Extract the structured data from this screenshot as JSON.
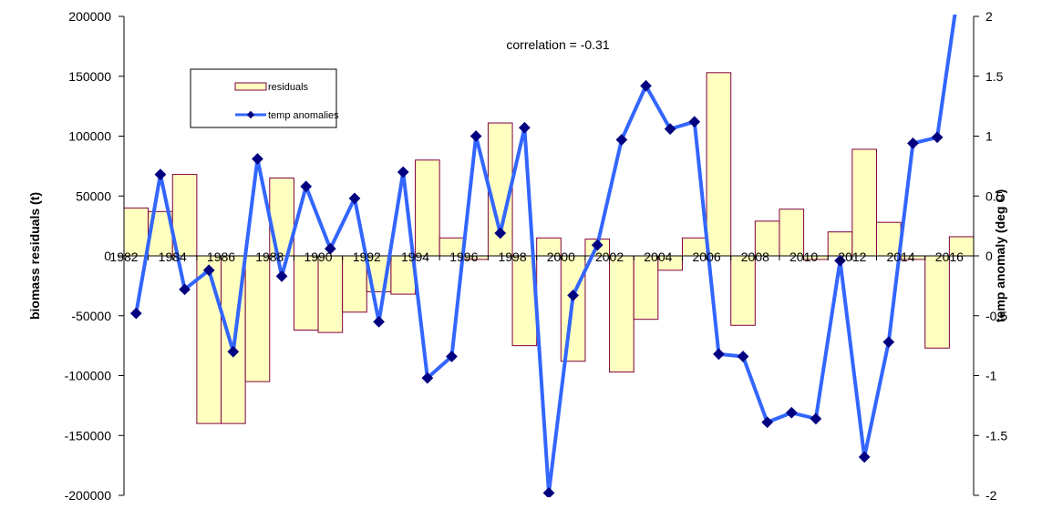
{
  "chart_data": {
    "type": "bar",
    "annotation": "correlation = -0.31",
    "xlabel": "",
    "ylabel_left": "biomass residuals (t)",
    "ylabel_right": "temp anomaly (deg C)",
    "ylim_left": [
      -200000,
      200000
    ],
    "ylim_right": [
      -2,
      2
    ],
    "y_ticks_left": [
      "200000",
      "150000",
      "100000",
      "50000",
      "0",
      "-50000",
      "-100000",
      "-150000",
      "-200000"
    ],
    "y_ticks_right": [
      "2",
      "1.5",
      "1",
      "0.5",
      "0",
      "-0.5",
      "-1",
      "-1.5",
      "-2"
    ],
    "x_tick_labels": [
      "1982",
      "1984",
      "1986",
      "1988",
      "1990",
      "1992",
      "1994",
      "1996",
      "1998",
      "2000",
      "2002",
      "2004",
      "2006",
      "2008",
      "2010",
      "2012",
      "2014",
      "2016"
    ],
    "grid": false,
    "legend_position": "top-left",
    "x": [
      1982,
      1983,
      1984,
      1985,
      1986,
      1987,
      1988,
      1989,
      1990,
      1991,
      1992,
      1993,
      1994,
      1995,
      1996,
      1997,
      1998,
      1999,
      2000,
      2001,
      2002,
      2003,
      2004,
      2005,
      2006,
      2007,
      2008,
      2009,
      2010,
      2011,
      2012,
      2013,
      2014,
      2015,
      2016
    ],
    "series": [
      {
        "name": "residuals",
        "type": "bar",
        "axis": "left",
        "values": [
          40000,
          37000,
          68000,
          -140000,
          -140000,
          -105000,
          65000,
          -62000,
          -64000,
          -47000,
          -30000,
          -32000,
          80000,
          15000,
          -3000,
          111000,
          -75000,
          15000,
          -88000,
          14000,
          -97000,
          -53000,
          -12000,
          15000,
          153000,
          -58000,
          29000,
          39000,
          -3000,
          20000,
          89000,
          28000,
          -3000,
          -77000,
          16000
        ]
      },
      {
        "name": "temp anomalies",
        "type": "line",
        "axis": "right",
        "values": [
          -0.48,
          0.68,
          -0.28,
          -0.12,
          -0.8,
          0.81,
          -0.17,
          0.58,
          0.06,
          0.48,
          -0.55,
          0.7,
          -1.02,
          -0.84,
          1.0,
          0.19,
          1.07,
          -1.98,
          -0.33,
          0.09,
          0.97,
          1.42,
          1.06,
          1.12,
          -0.82,
          -0.84,
          -1.39,
          -1.31,
          -1.36,
          -0.04,
          -1.68,
          -0.72,
          0.94,
          0.99,
          2.4
        ]
      }
    ]
  },
  "colors": {
    "bar_fill": "#FFFFC0",
    "bar_stroke": "#800040",
    "line": "#3366FF",
    "marker": "#000080",
    "axis": "#000000"
  }
}
